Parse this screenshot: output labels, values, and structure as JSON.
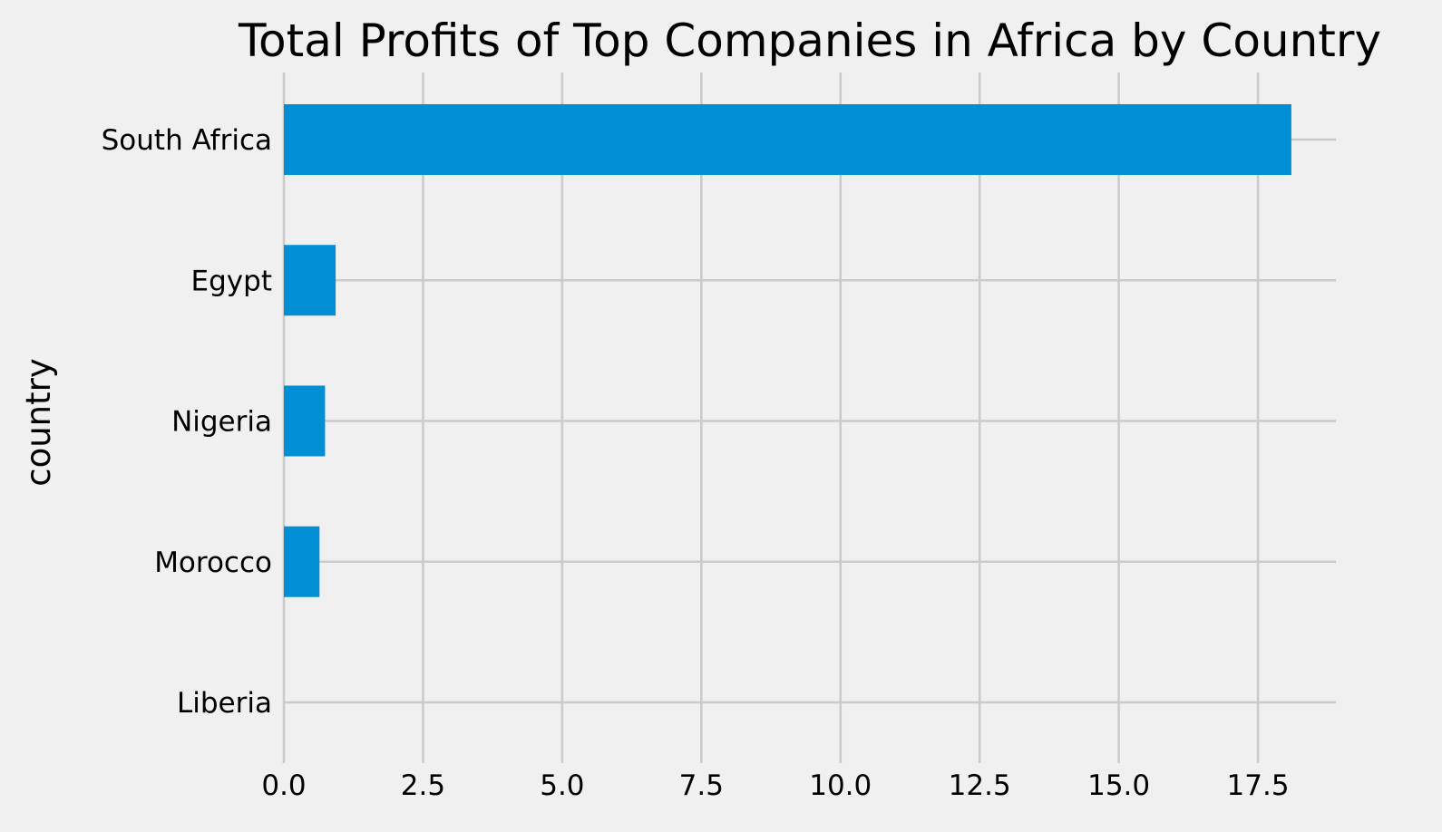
{
  "chart_data": {
    "type": "bar",
    "orientation": "horizontal",
    "title": "Total Profits of Top Companies in Africa by Country",
    "xlabel": "",
    "ylabel": "country",
    "categories": [
      "South Africa",
      "Egypt",
      "Nigeria",
      "Morocco",
      "Liberia"
    ],
    "values": [
      18.1,
      0.93,
      0.74,
      0.64,
      0.0
    ],
    "xlim": [
      0,
      18.9
    ],
    "xticks": [
      "0.0",
      "2.5",
      "5.0",
      "7.5",
      "10.0",
      "12.5",
      "15.0",
      "17.5"
    ],
    "xtick_values": [
      0,
      2.5,
      5,
      7.5,
      10,
      12.5,
      15,
      17.5
    ],
    "grid": true,
    "legend": "none",
    "colors": {
      "bar": "#008fd5",
      "background": "#f0f0f0",
      "grid": "#cbcbcb",
      "text": "#000000"
    }
  }
}
